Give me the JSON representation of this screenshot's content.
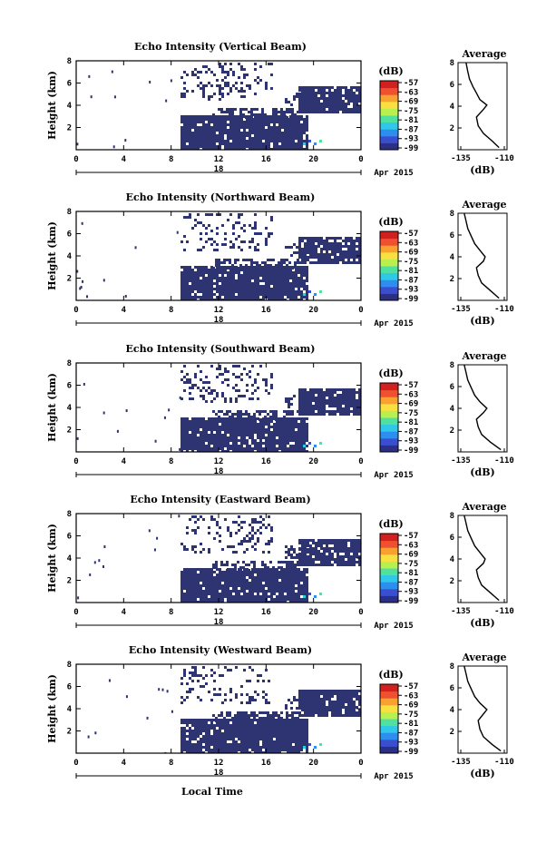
{
  "figure": {
    "date_label": "Apr 2015",
    "day_label": "18",
    "xlabel": "Local Time",
    "ylabel": "Height (km)",
    "cbar_unit": "(dB)",
    "avg_xlabel": "(dB)"
  },
  "chart_data": [
    {
      "type": "heatmap",
      "title": "Echo Intensity (Vertical Beam)",
      "x_ticks": [
        "0",
        "4",
        "8",
        "12",
        "16",
        "20",
        "0"
      ],
      "y_ticks": [
        "8",
        "6",
        "4",
        "2"
      ],
      "ylim": [
        0,
        8
      ],
      "colorbar": {
        "ticks": [
          "-57",
          "-63",
          "-69",
          "-75",
          "-81",
          "-87",
          "-93",
          "-99"
        ],
        "colors": [
          "#2b2f86",
          "#3a4fd0",
          "#2e8ef0",
          "#30c8e8",
          "#50e0a0",
          "#b8f050",
          "#f8e040",
          "#f8a030",
          "#f05030",
          "#d02020"
        ]
      },
      "average": {
        "title": "Average",
        "x_ticks": [
          "-135",
          "-110"
        ],
        "y_ticks": [
          "8",
          "6",
          "4",
          "2"
        ],
        "profile": [
          [
            -113,
            0.2
          ],
          [
            -117,
            0.8
          ],
          [
            -122,
            1.5
          ],
          [
            -125,
            2.2
          ],
          [
            -126,
            3.0
          ],
          [
            -122,
            3.7
          ],
          [
            -120,
            4.1
          ],
          [
            -124,
            4.6
          ],
          [
            -126,
            5.2
          ],
          [
            -128,
            5.8
          ],
          [
            -130,
            6.5
          ],
          [
            -131,
            7.2
          ],
          [
            -132,
            8.0
          ]
        ]
      }
    },
    {
      "type": "heatmap",
      "title": "Echo Intensity (Northward Beam)",
      "x_ticks": [
        "0",
        "4",
        "8",
        "12",
        "16",
        "20",
        "0"
      ],
      "y_ticks": [
        "8",
        "6",
        "4",
        "2"
      ],
      "ylim": [
        0,
        8
      ],
      "colorbar": {
        "ticks": [
          "-57",
          "-63",
          "-69",
          "-75",
          "-81",
          "-87",
          "-93",
          "-99"
        ]
      },
      "average": {
        "title": "Average",
        "x_ticks": [
          "-135",
          "-110"
        ],
        "y_ticks": [
          "8",
          "6",
          "4",
          "2"
        ],
        "profile": [
          [
            -113,
            0.2
          ],
          [
            -118,
            0.9
          ],
          [
            -123,
            1.6
          ],
          [
            -125,
            2.3
          ],
          [
            -126,
            3.0
          ],
          [
            -122,
            3.6
          ],
          [
            -121,
            4.0
          ],
          [
            -124,
            4.6
          ],
          [
            -127,
            5.2
          ],
          [
            -129,
            5.9
          ],
          [
            -131,
            6.6
          ],
          [
            -132,
            7.3
          ],
          [
            -133,
            8.0
          ]
        ]
      }
    },
    {
      "type": "heatmap",
      "title": "Echo Intensity (Southward Beam)",
      "x_ticks": [
        "0",
        "4",
        "8",
        "12",
        "16",
        "20",
        "0"
      ],
      "y_ticks": [
        "8",
        "6",
        "4",
        "2"
      ],
      "ylim": [
        0,
        8
      ],
      "colorbar": {
        "ticks": [
          "-57",
          "-63",
          "-69",
          "-75",
          "-81",
          "-87",
          "-93",
          "-99"
        ]
      },
      "average": {
        "title": "Average",
        "x_ticks": [
          "-135",
          "-110"
        ],
        "y_ticks": [
          "8",
          "6",
          "4",
          "2"
        ],
        "profile": [
          [
            -112,
            0.2
          ],
          [
            -118,
            0.9
          ],
          [
            -123,
            1.6
          ],
          [
            -125,
            2.3
          ],
          [
            -126,
            3.0
          ],
          [
            -122,
            3.6
          ],
          [
            -120,
            4.0
          ],
          [
            -124,
            4.6
          ],
          [
            -127,
            5.2
          ],
          [
            -129,
            5.9
          ],
          [
            -131,
            6.6
          ],
          [
            -132,
            7.3
          ],
          [
            -133,
            8.0
          ]
        ]
      }
    },
    {
      "type": "heatmap",
      "title": "Echo Intensity (Eastward Beam)",
      "x_ticks": [
        "0",
        "4",
        "8",
        "12",
        "16",
        "20",
        "0"
      ],
      "y_ticks": [
        "8",
        "6",
        "4",
        "2"
      ],
      "ylim": [
        0,
        8
      ],
      "colorbar": {
        "ticks": [
          "-57",
          "-63",
          "-69",
          "-75",
          "-81",
          "-87",
          "-93",
          "-99"
        ]
      },
      "average": {
        "title": "Average",
        "x_ticks": [
          "-135",
          "-110"
        ],
        "y_ticks": [
          "8",
          "6",
          "4",
          "2"
        ],
        "profile": [
          [
            -113,
            0.2
          ],
          [
            -118,
            0.9
          ],
          [
            -123,
            1.6
          ],
          [
            -125,
            2.3
          ],
          [
            -126,
            3.0
          ],
          [
            -122,
            3.6
          ],
          [
            -121,
            4.0
          ],
          [
            -124,
            4.6
          ],
          [
            -127,
            5.2
          ],
          [
            -129,
            5.9
          ],
          [
            -131,
            6.6
          ],
          [
            -132,
            7.3
          ],
          [
            -133,
            8.0
          ]
        ]
      }
    },
    {
      "type": "heatmap",
      "title": "Echo Intensity (Westward Beam)",
      "x_ticks": [
        "0",
        "4",
        "8",
        "12",
        "16",
        "20",
        "0"
      ],
      "y_ticks": [
        "8",
        "6",
        "4",
        "2"
      ],
      "ylim": [
        0,
        8
      ],
      "colorbar": {
        "ticks": [
          "-57",
          "-63",
          "-69",
          "-75",
          "-81",
          "-87",
          "-93",
          "-99"
        ]
      },
      "average": {
        "title": "Average",
        "x_ticks": [
          "-135",
          "-110"
        ],
        "y_ticks": [
          "8",
          "6",
          "4",
          "2"
        ],
        "profile": [
          [
            -112,
            0.2
          ],
          [
            -117,
            0.8
          ],
          [
            -122,
            1.5
          ],
          [
            -124,
            2.2
          ],
          [
            -125,
            3.0
          ],
          [
            -122,
            3.6
          ],
          [
            -120,
            4.0
          ],
          [
            -124,
            4.6
          ],
          [
            -127,
            5.2
          ],
          [
            -129,
            5.9
          ],
          [
            -131,
            6.6
          ],
          [
            -132,
            7.3
          ],
          [
            -133,
            8.0
          ]
        ]
      }
    }
  ]
}
